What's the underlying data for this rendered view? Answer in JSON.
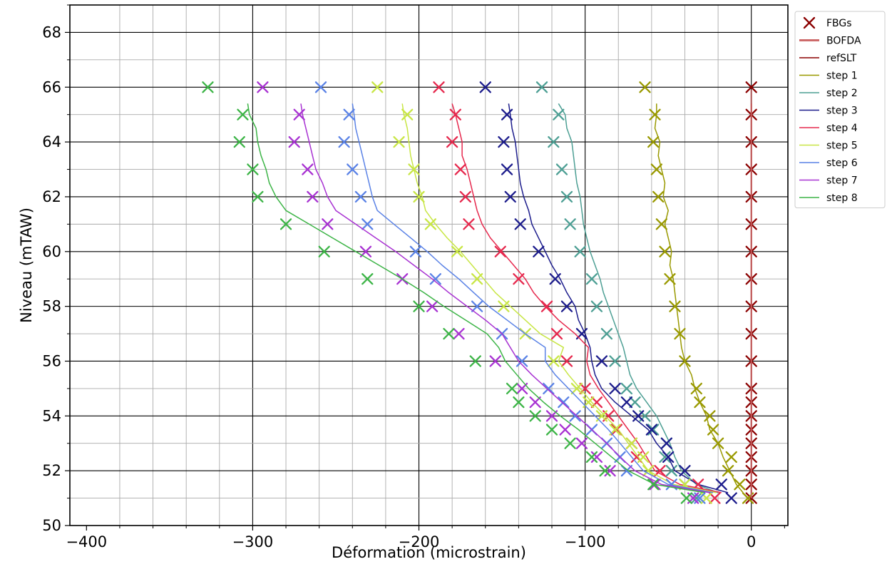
{
  "chart_data": {
    "type": "line",
    "title": "",
    "xlabel": "Déformation (microstrain)",
    "ylabel": "Niveau (mTAW)",
    "xlim": [
      -410,
      22
    ],
    "ylim": [
      50,
      69
    ],
    "x_ticks": [
      {
        "value": -400,
        "label": "−400"
      },
      {
        "value": -300,
        "label": "−300"
      },
      {
        "value": -200,
        "label": "−200"
      },
      {
        "value": -100,
        "label": "−100"
      },
      {
        "value": 0,
        "label": "0"
      }
    ],
    "y_ticks": [
      {
        "value": 50,
        "label": "50"
      },
      {
        "value": 52,
        "label": "52"
      },
      {
        "value": 54,
        "label": "54"
      },
      {
        "value": 56,
        "label": "56"
      },
      {
        "value": 58,
        "label": "58"
      },
      {
        "value": 60,
        "label": "60"
      },
      {
        "value": 62,
        "label": "62"
      },
      {
        "value": 64,
        "label": "64"
      },
      {
        "value": 66,
        "label": "66"
      },
      {
        "value": 68,
        "label": "68"
      }
    ],
    "grid": true,
    "legend_position": "outside right, top",
    "fbg_levels": [
      66,
      65,
      64,
      63,
      62,
      61,
      60,
      59,
      58,
      57,
      56,
      55,
      54.5,
      54,
      53.5,
      53,
      52.5,
      52,
      51.5,
      51
    ],
    "bofda_levels": [
      65.4,
      65,
      64.5,
      64,
      63.5,
      63,
      62.5,
      62,
      61.5,
      61,
      60.5,
      60,
      59.5,
      59,
      58.5,
      58,
      57.5,
      57,
      56.5,
      56,
      55.5,
      55,
      54.5,
      54,
      53.5,
      53,
      52.5,
      52,
      51.5,
      51.2
    ],
    "series": [
      {
        "name": "FBGs",
        "kind": "legend-marker",
        "color": "#8b0000"
      },
      {
        "name": "BOFDA",
        "kind": "legend-line",
        "color": "#cd6a6a"
      },
      {
        "name": "refSLT",
        "kind": "refline",
        "color": "#8b0000",
        "fbg": [
          0,
          0,
          0,
          0,
          0,
          0,
          0,
          0,
          0,
          0,
          0,
          0,
          0,
          0,
          0,
          0,
          0,
          0,
          0,
          0
        ],
        "bofda": [
          0,
          0,
          0,
          0,
          0,
          0,
          0,
          0,
          0,
          0,
          0,
          0,
          0,
          0,
          0,
          0,
          0,
          0,
          0,
          0,
          0,
          0,
          0,
          0,
          0,
          0,
          0,
          0,
          0,
          0
        ]
      },
      {
        "name": "step 1",
        "color": "#999900",
        "fbg": [
          -64,
          -58,
          -59,
          -57,
          -56,
          -54,
          -52,
          -49,
          -46,
          -43,
          -40,
          -33,
          -31,
          -25,
          -23,
          -20,
          -12,
          -14,
          -7,
          -2
        ],
        "bofda": [
          -57,
          -57,
          -58,
          -55,
          -56,
          -54,
          -52,
          -53,
          -50,
          -52,
          -50,
          -48,
          -49,
          -47,
          -46,
          -45,
          -44,
          -43,
          -42,
          -40,
          -36,
          -34,
          -31,
          -27,
          -25,
          -20,
          -17,
          -13,
          -9,
          -5
        ]
      },
      {
        "name": "step 2",
        "color": "#4d9f94",
        "fbg": [
          -126,
          -116,
          -119,
          -114,
          -111,
          -109,
          -103,
          -96,
          -93,
          -87,
          -82,
          -75,
          -70,
          -64,
          -59,
          -51,
          -52,
          -48,
          -40,
          -33
        ],
        "bofda": [
          -116,
          -112,
          -111,
          -108,
          -107,
          -106,
          -105,
          -103,
          -102,
          -101,
          -99,
          -97,
          -94,
          -91,
          -89,
          -86,
          -83,
          -80,
          -77,
          -75,
          -73,
          -69,
          -63,
          -57,
          -53,
          -49,
          -46,
          -42,
          -33,
          -20
        ]
      },
      {
        "name": "step 3",
        "color": "#1c1c8c",
        "fbg": [
          -160,
          -147,
          -149,
          -147,
          -145,
          -139,
          -128,
          -118,
          -111,
          -102,
          -90,
          -82,
          -75,
          -68,
          -60,
          -51,
          -50,
          -40,
          -18,
          -12
        ],
        "bofda": [
          -146,
          -145,
          -144,
          -142,
          -141,
          -140,
          -139,
          -137,
          -134,
          -132,
          -128,
          -124,
          -120,
          -115,
          -111,
          -106,
          -104,
          -100,
          -97,
          -96,
          -94,
          -90,
          -82,
          -72,
          -62,
          -57,
          -50,
          -46,
          -32,
          -14
        ]
      },
      {
        "name": "step 4",
        "color": "#e6284d",
        "fbg": [
          -188,
          -178,
          -180,
          -175,
          -172,
          -170,
          -151,
          -140,
          -123,
          -117,
          -111,
          -100,
          -93,
          -86,
          -81,
          -72,
          -69,
          -55,
          -32,
          -22
        ],
        "bofda": [
          -180,
          -178,
          -176,
          -174,
          -174,
          -171,
          -169,
          -167,
          -165,
          -162,
          -157,
          -150,
          -143,
          -136,
          -131,
          -124,
          -116,
          -106,
          -98,
          -99,
          -97,
          -92,
          -86,
          -80,
          -74,
          -68,
          -63,
          -58,
          -43,
          -18
        ]
      },
      {
        "name": "step 5",
        "color": "#c8e645",
        "fbg": [
          -225,
          -207,
          -212,
          -203,
          -200,
          -193,
          -177,
          -165,
          -149,
          -136,
          -119,
          -105,
          -98,
          -90,
          -82,
          -72,
          -65,
          -62,
          -40,
          -27
        ],
        "bofda": [
          -210,
          -209,
          -207,
          -206,
          -205,
          -203,
          -201,
          -198,
          -196,
          -190,
          -183,
          -175,
          -168,
          -161,
          -154,
          -145,
          -136,
          -127,
          -113,
          -116,
          -110,
          -103,
          -96,
          -88,
          -80,
          -74,
          -68,
          -62,
          -47,
          -21
        ]
      },
      {
        "name": "step 6",
        "color": "#5a82e6",
        "fbg": [
          -259,
          -242,
          -245,
          -240,
          -235,
          -231,
          -202,
          -190,
          -165,
          -150,
          -138,
          -122,
          -113,
          -106,
          -96,
          -87,
          -79,
          -75,
          -48,
          -31
        ],
        "bofda": [
          -240,
          -239,
          -238,
          -236,
          -234,
          -232,
          -230,
          -228,
          -225,
          -215,
          -205,
          -195,
          -186,
          -176,
          -167,
          -158,
          -147,
          -136,
          -124,
          -124,
          -118,
          -110,
          -102,
          -94,
          -86,
          -79,
          -72,
          -65,
          -50,
          -23
        ]
      },
      {
        "name": "step 7",
        "color": "#a832d2",
        "fbg": [
          -294,
          -272,
          -275,
          -267,
          -264,
          -255,
          -232,
          -210,
          -192,
          -176,
          -154,
          -138,
          -130,
          -120,
          -112,
          -102,
          -93,
          -85,
          -58,
          -35
        ],
        "bofda": [
          -271,
          -270,
          -268,
          -266,
          -264,
          -262,
          -258,
          -255,
          -250,
          -238,
          -226,
          -214,
          -203,
          -192,
          -182,
          -171,
          -160,
          -150,
          -145,
          -140,
          -132,
          -123,
          -114,
          -105,
          -96,
          -87,
          -79,
          -70,
          -54,
          -25
        ]
      },
      {
        "name": "step 8",
        "color": "#3cb446",
        "fbg": [
          -327,
          -306,
          -308,
          -300,
          -297,
          -280,
          -257,
          -231,
          -200,
          -182,
          -166,
          -144,
          -140,
          -130,
          -120,
          -109,
          -96,
          -88,
          -59,
          -39
        ],
        "bofda": [
          -303,
          -302,
          -298,
          -297,
          -295,
          -292,
          -290,
          -286,
          -280,
          -266,
          -252,
          -238,
          -224,
          -210,
          -197,
          -185,
          -172,
          -159,
          -152,
          -148,
          -141,
          -134,
          -125,
          -115,
          -104,
          -94,
          -84,
          -74,
          -58,
          -28
        ]
      }
    ]
  }
}
